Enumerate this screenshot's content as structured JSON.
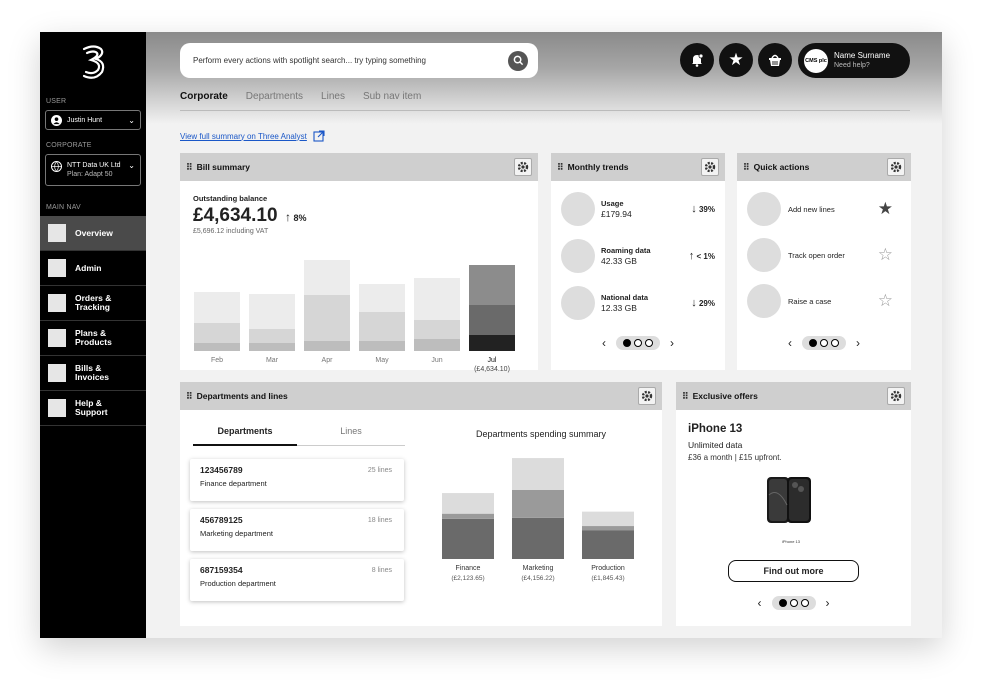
{
  "sidebar": {
    "user_label": "USER",
    "user_name": "Justin Hunt",
    "corporate_label": "CORPORATE",
    "corporate_name": "NTT Data UK Ltd",
    "corporate_plan": "Plan: Adapt 50",
    "main_nav_label": "MAIN NAV",
    "nav_items": [
      {
        "label": "Overview"
      },
      {
        "label": "Admin"
      },
      {
        "label": "Orders &\nTracking"
      },
      {
        "label": "Plans &\nProducts"
      },
      {
        "label": "Bills &\nInvoices"
      },
      {
        "label": "Help &\nSupport"
      }
    ]
  },
  "header": {
    "search_placeholder": "Perform every actions with spotlight search... try typing something",
    "profile_avatar": "CMS plc",
    "profile_name": "Name Surname",
    "profile_help": "Need help?",
    "tabs": [
      "Corporate",
      "Departments",
      "Lines",
      "Sub nav item"
    ]
  },
  "summary_link": "View full summary on Three Analyst",
  "bill_summary": {
    "title": "Bill summary",
    "balance_label": "Outstanding balance",
    "balance": "£4,634.10",
    "change": "8%",
    "vat_note": "£5,696.12 including VAT",
    "last_value": "(£4,634.10)"
  },
  "monthly_trends": {
    "title": "Monthly trends",
    "items": [
      {
        "label": "Usage",
        "value": "£179.94",
        "change": "39%",
        "dir": "down"
      },
      {
        "label": "Roaming data",
        "value": "42.33 GB",
        "change": "< 1%",
        "dir": "up"
      },
      {
        "label": "National data",
        "value": "12.33 GB",
        "change": "29%",
        "dir": "down"
      }
    ]
  },
  "quick_actions": {
    "title": "Quick actions",
    "items": [
      {
        "label": "Add new lines",
        "starred": true
      },
      {
        "label": "Track open order",
        "starred": false
      },
      {
        "label": "Raise a case",
        "starred": false
      }
    ]
  },
  "departments": {
    "title": "Departments and lines",
    "tab_departments": "Departments",
    "tab_lines": "Lines",
    "chart_title": "Departments spending summary",
    "items": [
      {
        "number": "123456789",
        "lines": "25 lines",
        "name": "Finance department"
      },
      {
        "number": "456789125",
        "lines": "18 lines",
        "name": "Marketing department"
      },
      {
        "number": "687159354",
        "lines": "8 lines",
        "name": "Production department"
      }
    ],
    "amounts": [
      "(£2,123.65)",
      "(£4,156.22)",
      "(£1,845.43)"
    ]
  },
  "offers": {
    "title": "Exclusive offers",
    "product": "iPhone 13",
    "subtitle": "Unlimited data",
    "price": "£36 a month | £15 upfront.",
    "phone_caption": "iPhone 13",
    "cta": "Find out more"
  },
  "chart_data": [
    {
      "type": "bar",
      "categories": [
        "Feb",
        "Mar",
        "Apr",
        "May",
        "Jun",
        "Jul"
      ],
      "series": [
        {
          "values": [
            8,
            8,
            10,
            10,
            12,
            16
          ]
        },
        {
          "values": [
            20,
            14,
            46,
            29,
            19,
            30
          ]
        },
        {
          "values": [
            31,
            35,
            35,
            28,
            42,
            40
          ]
        }
      ],
      "ylim": [
        0,
        90
      ],
      "colors": [
        "#bdbdbd",
        "#d6d6d6",
        "#ececec",
        "#222222",
        "#6a6a6a",
        "#8c8c8c"
      ]
    },
    {
      "type": "bar",
      "categories": [
        "Finance",
        "Marketing",
        "Production"
      ],
      "series": [
        {
          "values": [
            39,
            40,
            28
          ]
        },
        {
          "values": [
            5,
            27,
            4
          ]
        },
        {
          "values": [
            20,
            31,
            14
          ]
        }
      ],
      "ylim": [
        0,
        100
      ],
      "colors": [
        "#6a6a6a",
        "#9a9a9a",
        "#dcdcdc"
      ]
    }
  ]
}
